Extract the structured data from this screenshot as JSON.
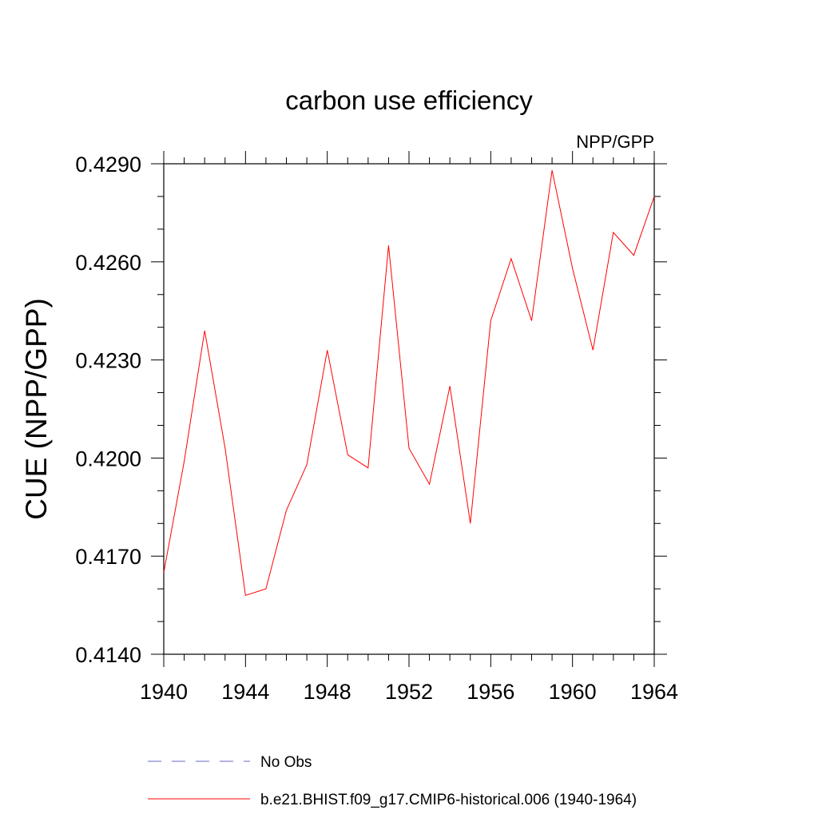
{
  "chart_data": {
    "type": "line",
    "title": "carbon use efficiency",
    "subtitle": "NPP/GPP",
    "xlabel": "",
    "ylabel": "CUE  (NPP/GPP)",
    "xlim": [
      1940,
      1964
    ],
    "ylim": [
      0.414,
      0.429
    ],
    "x_ticks": [
      "1940",
      "1944",
      "1948",
      "1952",
      "1956",
      "1960",
      "1964"
    ],
    "y_ticks": [
      "0.4140",
      "0.4170",
      "0.4200",
      "0.4230",
      "0.4260",
      "0.4290"
    ],
    "grid": false,
    "legend_position": "bottom",
    "legend": [
      {
        "label": "No Obs",
        "color": "#6a6ac8",
        "dash": true
      },
      {
        "label": "b.e21.BHIST.f09_g17.CMIP6-historical.006 (1940-1964)",
        "color": "#ff0000",
        "dash": false
      }
    ],
    "series": [
      {
        "name": "b.e21.BHIST.f09_g17.CMIP6-historical.006 (1940-1964)",
        "color": "#ff0000",
        "x": [
          1940,
          1941,
          1942,
          1943,
          1944,
          1945,
          1946,
          1947,
          1948,
          1949,
          1950,
          1951,
          1952,
          1953,
          1954,
          1955,
          1956,
          1957,
          1958,
          1959,
          1960,
          1961,
          1962,
          1963,
          1964
        ],
        "values": [
          0.4165,
          0.4199,
          0.4239,
          0.4203,
          0.4158,
          0.416,
          0.4184,
          0.4198,
          0.4233,
          0.4201,
          0.4197,
          0.4265,
          0.4203,
          0.4192,
          0.4222,
          0.418,
          0.4242,
          0.4261,
          0.4242,
          0.4288,
          0.4258,
          0.4233,
          0.4269,
          0.4262,
          0.428
        ]
      }
    ]
  }
}
